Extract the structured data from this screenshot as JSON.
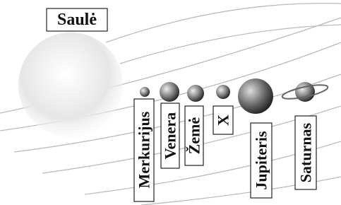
{
  "sun": {
    "label": "Saulė"
  },
  "planets": [
    {
      "label": "Merkurijus"
    },
    {
      "label": "Venera"
    },
    {
      "label": "Žemė"
    },
    {
      "label": "X"
    },
    {
      "label": "Jupiteris"
    },
    {
      "label": "Saturnas"
    }
  ]
}
